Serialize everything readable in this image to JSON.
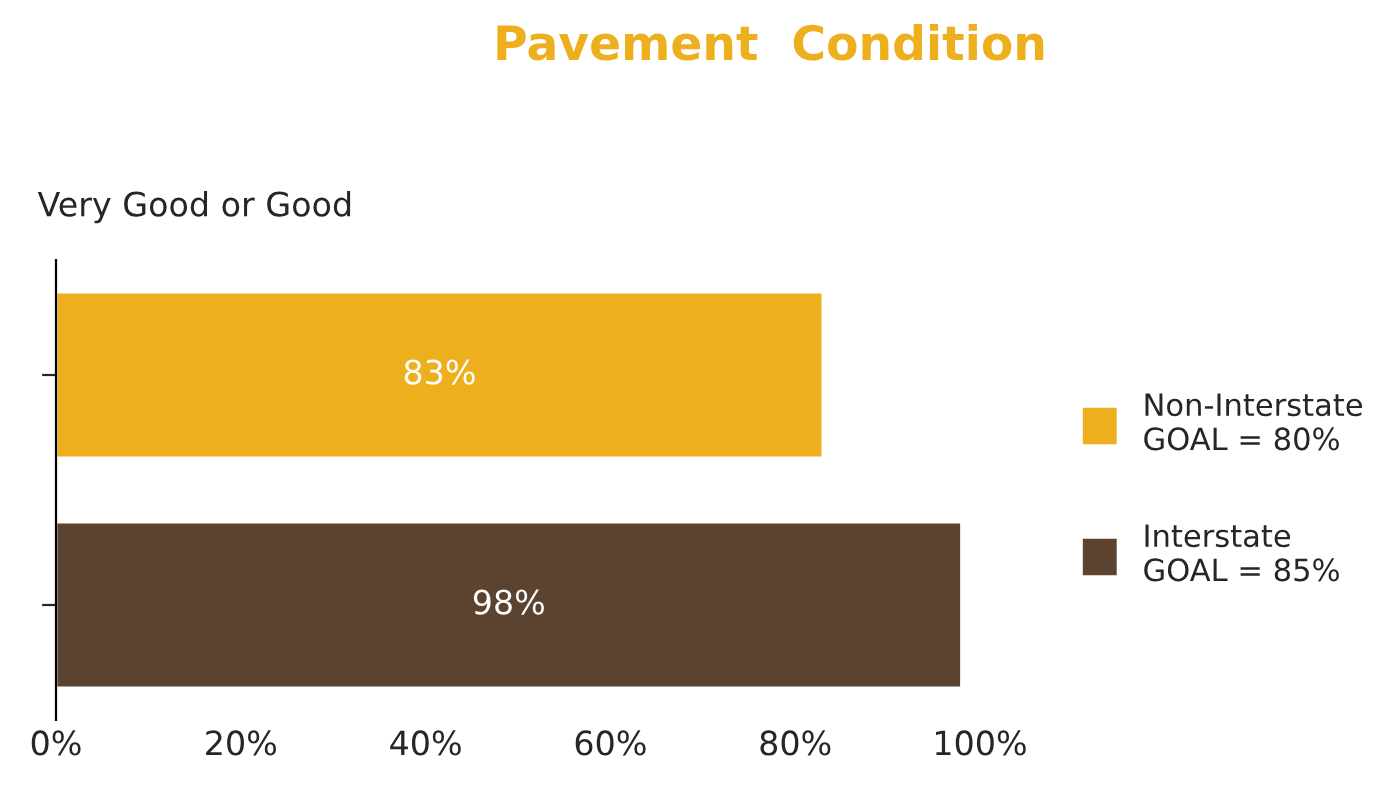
{
  "chart_data": {
    "type": "bar",
    "orientation": "horizontal",
    "title": "Pavement  Condition",
    "ylabel": "Very Good or Good",
    "categories": [
      null,
      null
    ],
    "series": [
      {
        "name": "Non-Interstate\nGOAL = 80%",
        "color": "#eeaf1f",
        "values": [
          83,
          null
        ],
        "value_labels": [
          "83%",
          null
        ]
      },
      {
        "name": "Interstate\nGOAL = 85%",
        "color": "#5c4330",
        "values": [
          null,
          98
        ],
        "value_labels": [
          null,
          "98%"
        ]
      }
    ],
    "xlim": [
      0,
      100
    ],
    "xticks": [
      {
        "value": 0,
        "label": "0%"
      },
      {
        "value": 20,
        "label": "20%"
      },
      {
        "value": 40,
        "label": "40%"
      },
      {
        "value": 60,
        "label": "60%"
      },
      {
        "value": 80,
        "label": "80%"
      },
      {
        "value": 100,
        "label": "100%"
      }
    ],
    "grid": false,
    "legend": "right",
    "tick_labels": "x"
  }
}
